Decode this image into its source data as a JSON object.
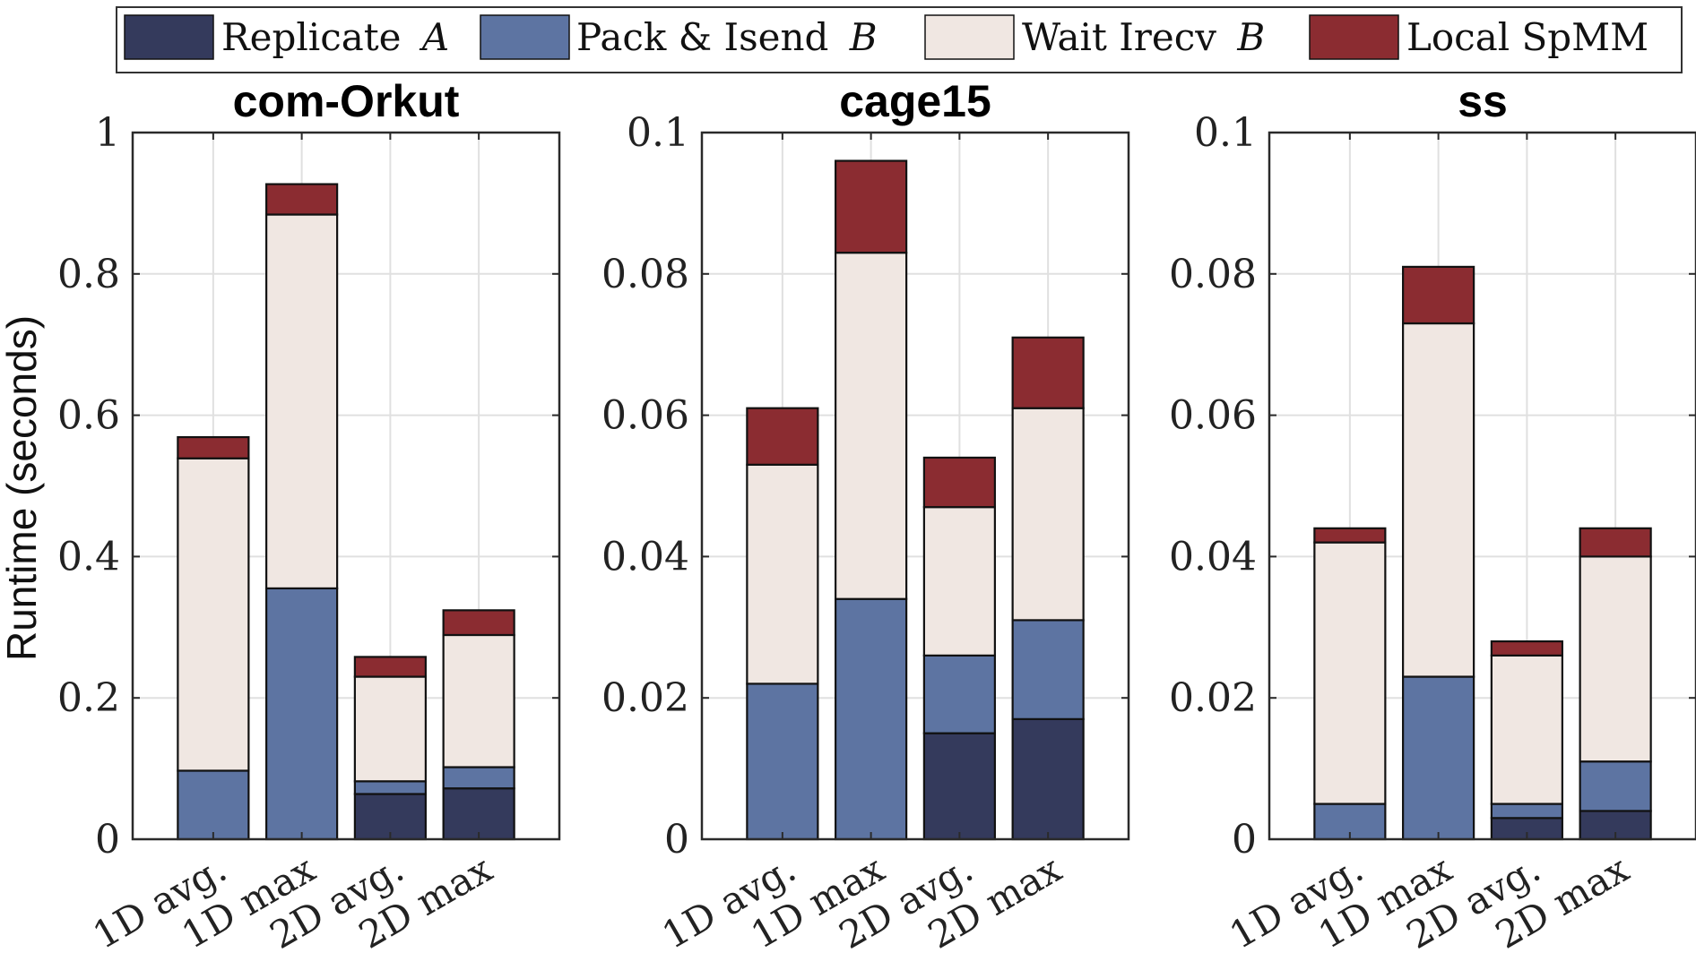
{
  "chart_data": {
    "type": "bar",
    "stacked": true,
    "ylabel": "Runtime (seconds)",
    "legend": {
      "placement": "top",
      "entries": [
        {
          "name": "Replicate",
          "math": "A",
          "color": "#343a5c"
        },
        {
          "name": "Pack & Isend",
          "math": "B",
          "color": "#5d74a2"
        },
        {
          "name": "Wait Irecv",
          "math": "B",
          "color": "#f0e7e2"
        },
        {
          "name": "Local SpMM",
          "math": "",
          "color": "#8b2c31"
        }
      ]
    },
    "categories": [
      "1D avg.",
      "1D max",
      "2D avg.",
      "2D max"
    ],
    "grid": true,
    "panels": [
      {
        "title": "com-Orkut",
        "ylim": [
          0,
          1
        ],
        "yticks": [
          0,
          0.2,
          0.4,
          0.6,
          0.8,
          1
        ],
        "ytick_labels": [
          "0",
          "0.2",
          "0.4",
          "0.6",
          "0.8",
          "1"
        ],
        "series": [
          {
            "name": "Replicate A",
            "values": [
              0,
              0,
              0.064,
              0.072
            ]
          },
          {
            "name": "Pack & Isend B",
            "values": [
              0.097,
              0.355,
              0.018,
              0.03
            ]
          },
          {
            "name": "Wait Irecv B",
            "values": [
              0.442,
              0.529,
              0.148,
              0.187
            ]
          },
          {
            "name": "Local SpMM",
            "values": [
              0.03,
              0.043,
              0.028,
              0.035
            ]
          }
        ]
      },
      {
        "title": "cage15",
        "ylim": [
          0,
          0.1
        ],
        "yticks": [
          0,
          0.02,
          0.04,
          0.06,
          0.08,
          0.1
        ],
        "ytick_labels": [
          "0",
          "0.02",
          "0.04",
          "0.06",
          "0.08",
          "0.1"
        ],
        "series": [
          {
            "name": "Replicate A",
            "values": [
              0,
              0,
              0.015,
              0.017
            ]
          },
          {
            "name": "Pack & Isend B",
            "values": [
              0.022,
              0.034,
              0.011,
              0.014
            ]
          },
          {
            "name": "Wait Irecv B",
            "values": [
              0.031,
              0.049,
              0.021,
              0.03
            ]
          },
          {
            "name": "Local SpMM",
            "values": [
              0.008,
              0.013,
              0.007,
              0.01
            ]
          }
        ]
      },
      {
        "title": "ss",
        "ylim": [
          0,
          0.1
        ],
        "yticks": [
          0,
          0.02,
          0.04,
          0.06,
          0.08,
          0.1
        ],
        "ytick_labels": [
          "0",
          "0.02",
          "0.04",
          "0.06",
          "0.08",
          "0.1"
        ],
        "series": [
          {
            "name": "Replicate A",
            "values": [
              0,
              0,
              0.003,
              0.004
            ]
          },
          {
            "name": "Pack & Isend B",
            "values": [
              0.005,
              0.023,
              0.002,
              0.007
            ]
          },
          {
            "name": "Wait Irecv B",
            "values": [
              0.037,
              0.05,
              0.021,
              0.029
            ]
          },
          {
            "name": "Local SpMM",
            "values": [
              0.002,
              0.008,
              0.002,
              0.004
            ]
          }
        ]
      }
    ]
  }
}
